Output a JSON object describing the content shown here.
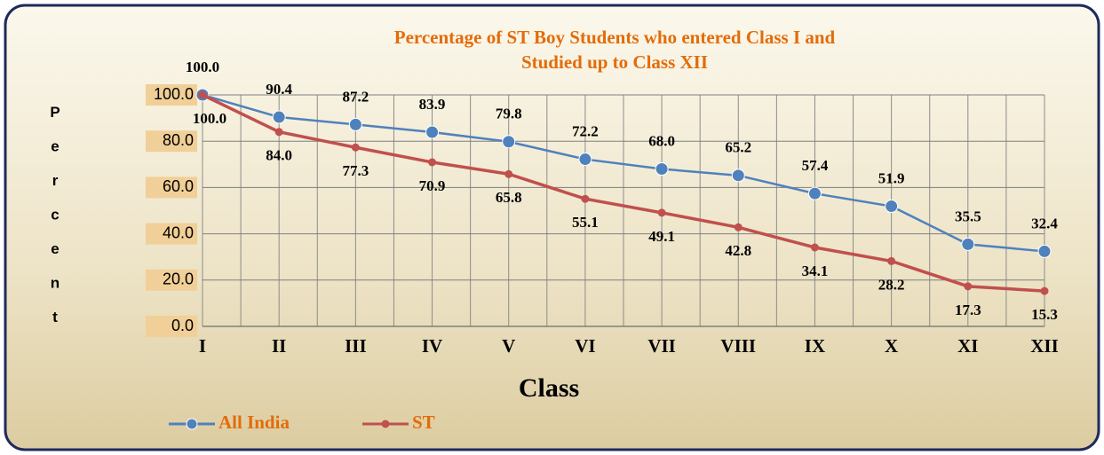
{
  "chart_data": {
    "type": "line",
    "title": "Percentage of ST Boy Students who entered Class I and",
    "subtitle": "Studied up to Class XII",
    "y_label": "Percent",
    "x_label": "Class",
    "categories": [
      "I",
      "II",
      "III",
      "IV",
      "V",
      "VI",
      "VII",
      "VIII",
      "IX",
      "X",
      "XI",
      "XII"
    ],
    "series": [
      {
        "name": "All India",
        "color": "#4f81bd",
        "values": [
          100,
          90.4,
          87.2,
          83.9,
          79.8,
          72.2,
          68.0,
          65.2,
          57.4,
          51.9,
          35.5,
          32.4
        ],
        "value_labels": [
          "100.0",
          "90.4",
          "87.2",
          "83.9",
          "79.8",
          "72.2",
          "68.0",
          "65.2",
          "57.4",
          "51.9",
          "35.5",
          "32.4"
        ]
      },
      {
        "name": "ST",
        "color": "#c0504d",
        "values": [
          100,
          84.0,
          77.3,
          70.9,
          65.8,
          55.1,
          49.1,
          42.8,
          34.1,
          28.2,
          17.3,
          15.3
        ],
        "value_labels": [
          "100.0",
          "84.0",
          "77.3",
          "70.9",
          "65.8",
          "55.1",
          "49.1",
          "42.8",
          "34.1",
          "28.2",
          "17.3",
          "15.3"
        ]
      }
    ],
    "ylim": [
      0,
      100
    ],
    "yticks": [
      {
        "value": 0,
        "label": "0.0"
      },
      {
        "value": 20,
        "label": "20.0"
      },
      {
        "value": 40,
        "label": "40.0"
      },
      {
        "value": 60,
        "label": "60.0"
      },
      {
        "value": 80,
        "label": "80.0"
      },
      {
        "value": 100,
        "label": "100.0"
      }
    ],
    "grid": true,
    "legend": "bottom-left"
  }
}
